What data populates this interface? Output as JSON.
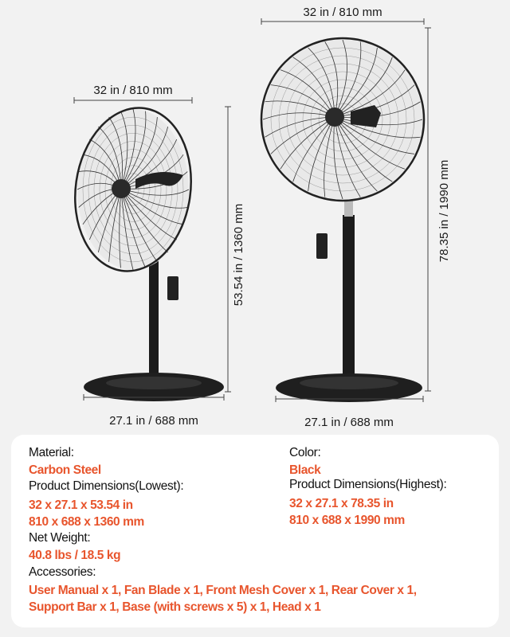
{
  "dimensions": {
    "lowest": {
      "width": "32 in / 810 mm",
      "height": "53.54 in / 1360 mm",
      "base": "27.1 in / 688 mm"
    },
    "highest": {
      "width": "32 in / 810 mm",
      "height": "78.35 in / 1990 mm",
      "base": "27.1 in / 688 mm"
    }
  },
  "specs": {
    "material_label": "Material:",
    "material_value": "Carbon Steel",
    "color_label": "Color:",
    "color_value": "Black",
    "dim_lowest_label": "Product Dimensions(Lowest):",
    "dim_lowest_in": "32 x 27.1 x 53.54 in",
    "dim_lowest_mm": "810 x 688 x 1360 mm",
    "dim_highest_label": "Product Dimensions(Highest):",
    "dim_highest_in": "32 x 27.1 x 78.35 in",
    "dim_highest_mm": "810 x 688 x 1990 mm",
    "weight_label": "Net Weight:",
    "weight_value": "40.8 lbs / 18.5 kg",
    "accessories_label": "Accessories:",
    "accessories_line1": "User Manual x 1, Fan Blade x 1, Front Mesh Cover x 1, Rear Cover x 1,",
    "accessories_line2": "Support Bar x 1, Base (with screws x 5) x 1, Head x 1"
  },
  "colors": {
    "accent": "#e8552d",
    "background": "#f2f2f2",
    "card": "#ffffff",
    "product": "#1c1c1c"
  }
}
